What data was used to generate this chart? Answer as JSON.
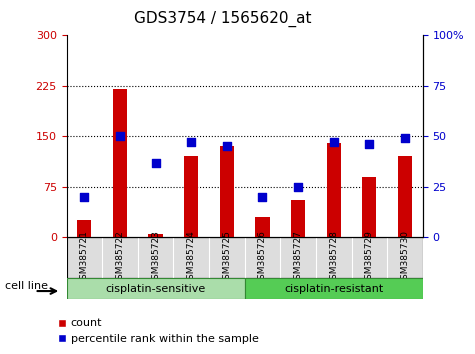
{
  "title": "GDS3754 / 1565620_at",
  "samples": [
    "GSM385721",
    "GSM385722",
    "GSM385723",
    "GSM385724",
    "GSM385725",
    "GSM385726",
    "GSM385727",
    "GSM385728",
    "GSM385729",
    "GSM385730"
  ],
  "counts": [
    25,
    220,
    5,
    120,
    135,
    30,
    55,
    140,
    90,
    120
  ],
  "percentile_ranks": [
    20,
    50,
    37,
    47,
    45,
    20,
    25,
    47,
    46,
    49
  ],
  "bar_color": "#cc0000",
  "square_color": "#0000cc",
  "left_ylim": [
    0,
    300
  ],
  "right_ylim": [
    0,
    100
  ],
  "left_yticks": [
    0,
    75,
    150,
    225,
    300
  ],
  "right_yticks": [
    0,
    25,
    50,
    75,
    100
  ],
  "right_yticklabels": [
    "0",
    "25",
    "50",
    "75",
    "100%"
  ],
  "left_tick_color": "#cc0000",
  "right_tick_color": "#0000cc",
  "groups": [
    {
      "label": "cisplatin-sensitive",
      "start": 0,
      "end": 5,
      "color": "#aaddaa"
    },
    {
      "label": "cisplatin-resistant",
      "start": 5,
      "end": 10,
      "color": "#55cc55"
    }
  ],
  "cell_line_label": "cell line",
  "legend_count_label": "count",
  "legend_percentile_label": "percentile rank within the sample",
  "dotted_grid_color": "#000000",
  "title_fontsize": 11,
  "tick_fontsize": 7,
  "group_fontsize": 8
}
